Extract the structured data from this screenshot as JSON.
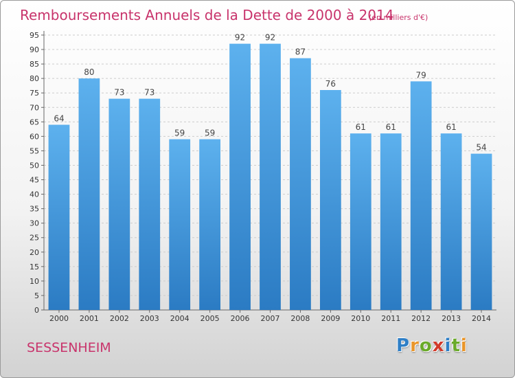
{
  "chart_data": {
    "type": "bar",
    "title": "Remboursements Annuels de la Dette de 2000 à 2014",
    "unit": "(en milliers d'€)",
    "categories": [
      "2000",
      "2001",
      "2002",
      "2003",
      "2004",
      "2005",
      "2006",
      "2007",
      "2008",
      "2009",
      "2010",
      "2011",
      "2012",
      "2013",
      "2014"
    ],
    "values": [
      64,
      80,
      73,
      73,
      59,
      59,
      92,
      92,
      87,
      76,
      61,
      61,
      79,
      61,
      54
    ],
    "ylim": [
      0,
      95
    ],
    "yticks": [
      "0",
      "5",
      "10",
      "15",
      "20",
      "25",
      "30",
      "35",
      "40",
      "45",
      "50",
      "55",
      "60",
      "65",
      "70",
      "75",
      "80",
      "85",
      "90",
      "95"
    ],
    "xlabel": "",
    "ylabel": "",
    "grid": true,
    "bar_color": "#4a9ddf",
    "title_color": "#c8336b"
  },
  "footer": {
    "place": "SESSENHEIM",
    "logo_letters": [
      {
        "ch": "P",
        "color": "#2f7fc6"
      },
      {
        "ch": "r",
        "color": "#e9962b"
      },
      {
        "ch": "o",
        "color": "#6aaa2a"
      },
      {
        "ch": "x",
        "color": "#d23a2a"
      },
      {
        "ch": "i",
        "color": "#2f7fc6"
      },
      {
        "ch": "t",
        "color": "#6aaa2a"
      },
      {
        "ch": "i",
        "color": "#e9962b"
      }
    ]
  }
}
